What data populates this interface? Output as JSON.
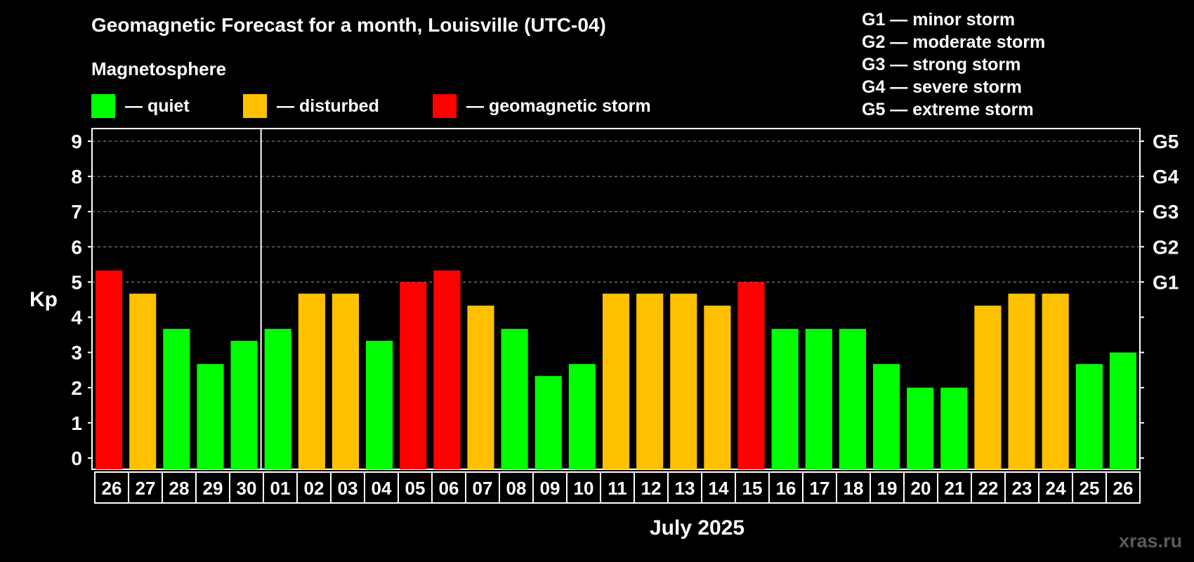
{
  "header": {
    "title": "Geomagnetic Forecast for a month, Louisville (UTC-04)",
    "section_label": "Magnetosphere"
  },
  "legend": [
    {
      "label": "— quiet",
      "color": "#00ff00"
    },
    {
      "label": "— disturbed",
      "color": "#ffc000"
    },
    {
      "label": "— geomagnetic storm",
      "color": "#ff0000"
    }
  ],
  "storm_scale": [
    "G1 — minor storm",
    "G2 — moderate storm",
    "G3 — strong storm",
    "G4 — severe storm",
    "G5 — extreme storm"
  ],
  "footer": {
    "month_label": "July 2025",
    "watermark": "xras.ru"
  },
  "chart_data": {
    "type": "bar",
    "ylabel": "Kp",
    "xlabel": "July 2025",
    "ylim": [
      0,
      9
    ],
    "y_ticks": [
      "0",
      "1",
      "2",
      "3",
      "4",
      "5",
      "6",
      "7",
      "8",
      "9"
    ],
    "right_axis_labels": [
      {
        "kp": 5,
        "label": "G1"
      },
      {
        "kp": 6,
        "label": "G2"
      },
      {
        "kp": 7,
        "label": "G3"
      },
      {
        "kp": 8,
        "label": "G4"
      },
      {
        "kp": 9,
        "label": "G5"
      }
    ],
    "grid": "dashed horizontal at Kp 5-9",
    "month_separator_after_category": "30",
    "categories": [
      "26",
      "27",
      "28",
      "29",
      "30",
      "01",
      "02",
      "03",
      "04",
      "05",
      "06",
      "07",
      "08",
      "09",
      "10",
      "11",
      "12",
      "13",
      "14",
      "15",
      "16",
      "17",
      "18",
      "19",
      "20",
      "21",
      "22",
      "23",
      "24",
      "25",
      "26"
    ],
    "values": [
      5.33,
      4.67,
      3.67,
      2.67,
      3.33,
      3.67,
      4.67,
      4.67,
      3.33,
      5.0,
      5.33,
      4.33,
      3.67,
      2.33,
      2.67,
      4.67,
      4.67,
      4.67,
      4.33,
      5.0,
      3.67,
      3.67,
      3.67,
      2.67,
      2.0,
      2.0,
      4.33,
      4.67,
      4.67,
      2.67,
      3.0
    ],
    "levels": [
      "storm",
      "disturbed",
      "quiet",
      "quiet",
      "quiet",
      "quiet",
      "disturbed",
      "disturbed",
      "quiet",
      "storm",
      "storm",
      "disturbed",
      "quiet",
      "quiet",
      "quiet",
      "disturbed",
      "disturbed",
      "disturbed",
      "disturbed",
      "storm",
      "quiet",
      "quiet",
      "quiet",
      "quiet",
      "quiet",
      "quiet",
      "disturbed",
      "disturbed",
      "disturbed",
      "quiet",
      "quiet"
    ],
    "level_colors": {
      "quiet": "#00ff00",
      "disturbed": "#ffc000",
      "storm": "#ff0000"
    }
  }
}
